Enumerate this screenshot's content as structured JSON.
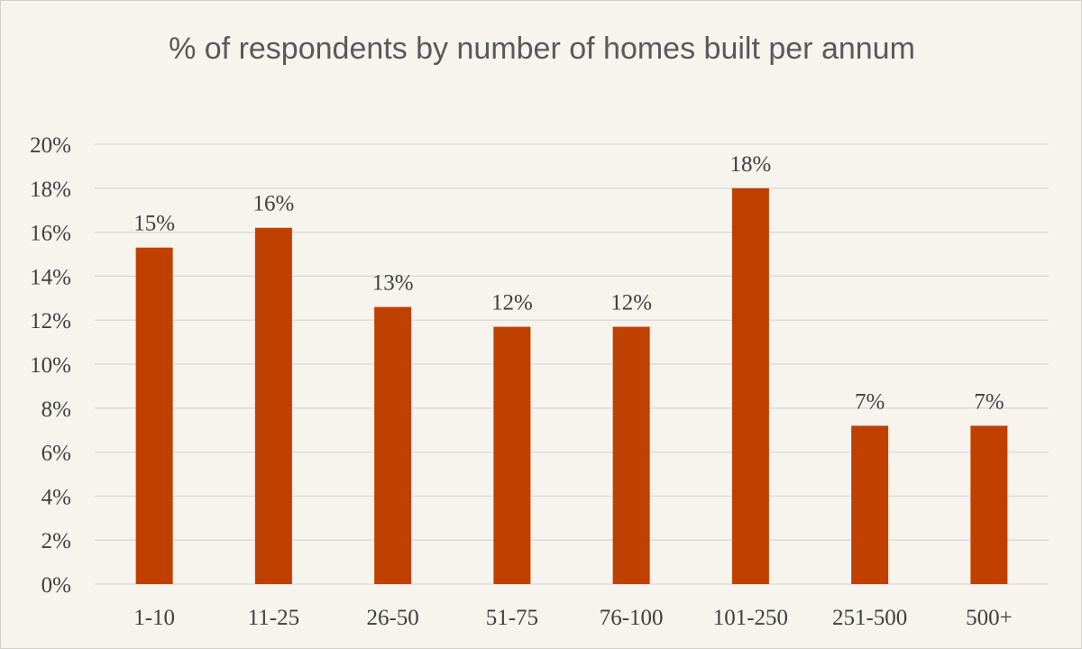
{
  "chart_data": {
    "type": "bar",
    "title": "% of respondents by number of homes built per annum",
    "categories": [
      "1-10",
      "11-25",
      "26-50",
      "51-75",
      "76-100",
      "101-250",
      "251-500",
      "500+"
    ],
    "values": [
      15.3,
      16.2,
      12.6,
      11.7,
      11.7,
      18.0,
      7.2,
      7.2
    ],
    "data_labels": [
      "15%",
      "16%",
      "13%",
      "12%",
      "12%",
      "18%",
      "7%",
      "7%"
    ],
    "yticks": [
      "0%",
      "2%",
      "4%",
      "6%",
      "8%",
      "10%",
      "12%",
      "14%",
      "16%",
      "18%",
      "20%"
    ],
    "ylim": [
      0,
      20
    ],
    "xlabel": "",
    "ylabel": "",
    "grid": true,
    "legend": "none",
    "bar_color": "#c04000",
    "grid_color": "#d9d9d9"
  }
}
